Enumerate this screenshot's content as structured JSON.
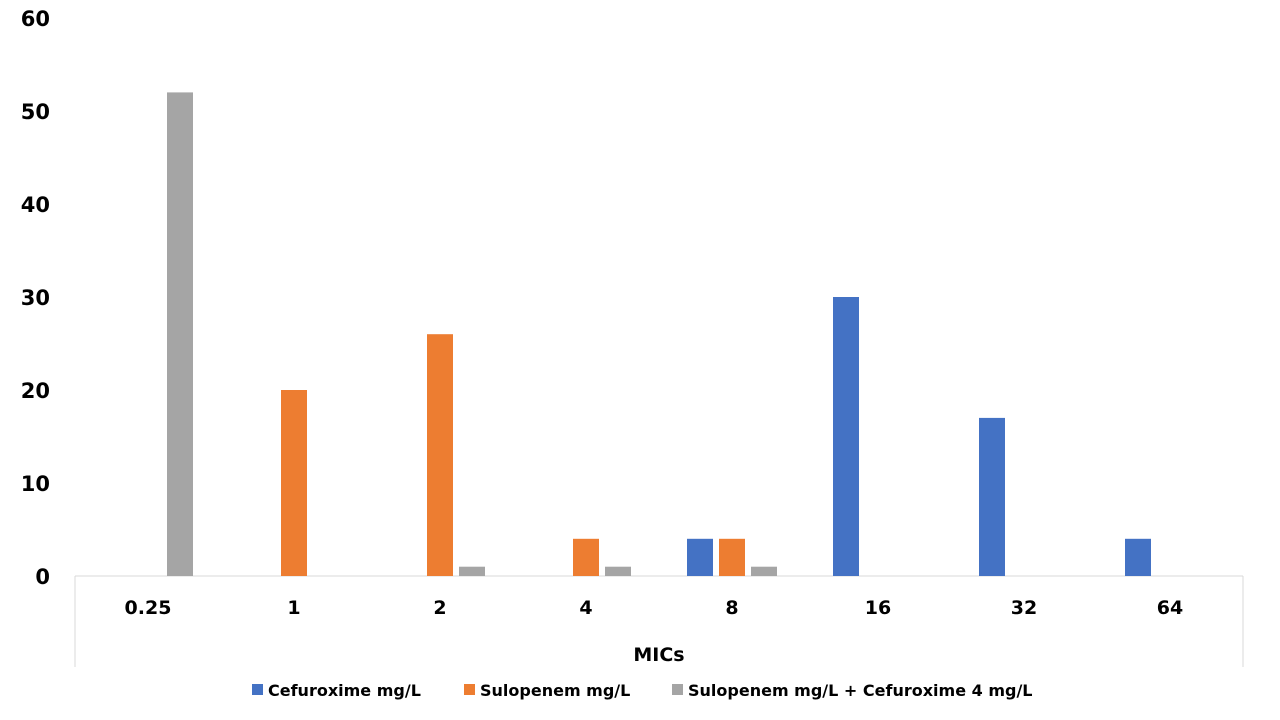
{
  "chart_data": {
    "type": "bar",
    "title": "",
    "xlabel": "MICs",
    "ylabel": "",
    "ylim": [
      0,
      60
    ],
    "yticks": [
      "0",
      "10",
      "20",
      "30",
      "40",
      "50",
      "60"
    ],
    "categories": [
      "0.25",
      "1",
      "2",
      "4",
      "8",
      "16",
      "32",
      "64"
    ],
    "series": [
      {
        "name": "Cefuroxime mg/L",
        "color": "#4472C4",
        "values": [
          0,
          0,
          0,
          0,
          4,
          30,
          17,
          4
        ]
      },
      {
        "name": "Sulopenem mg/L",
        "color": "#ED7D31",
        "values": [
          0,
          20,
          26,
          4,
          4,
          0,
          0,
          0
        ]
      },
      {
        "name": "Sulopenem mg/L + Cefuroxime 4 mg/L",
        "color": "#A5A5A5",
        "values": [
          52,
          0,
          1,
          1,
          1,
          0,
          0,
          0
        ]
      }
    ],
    "legend_position": "bottom",
    "grid": false
  }
}
